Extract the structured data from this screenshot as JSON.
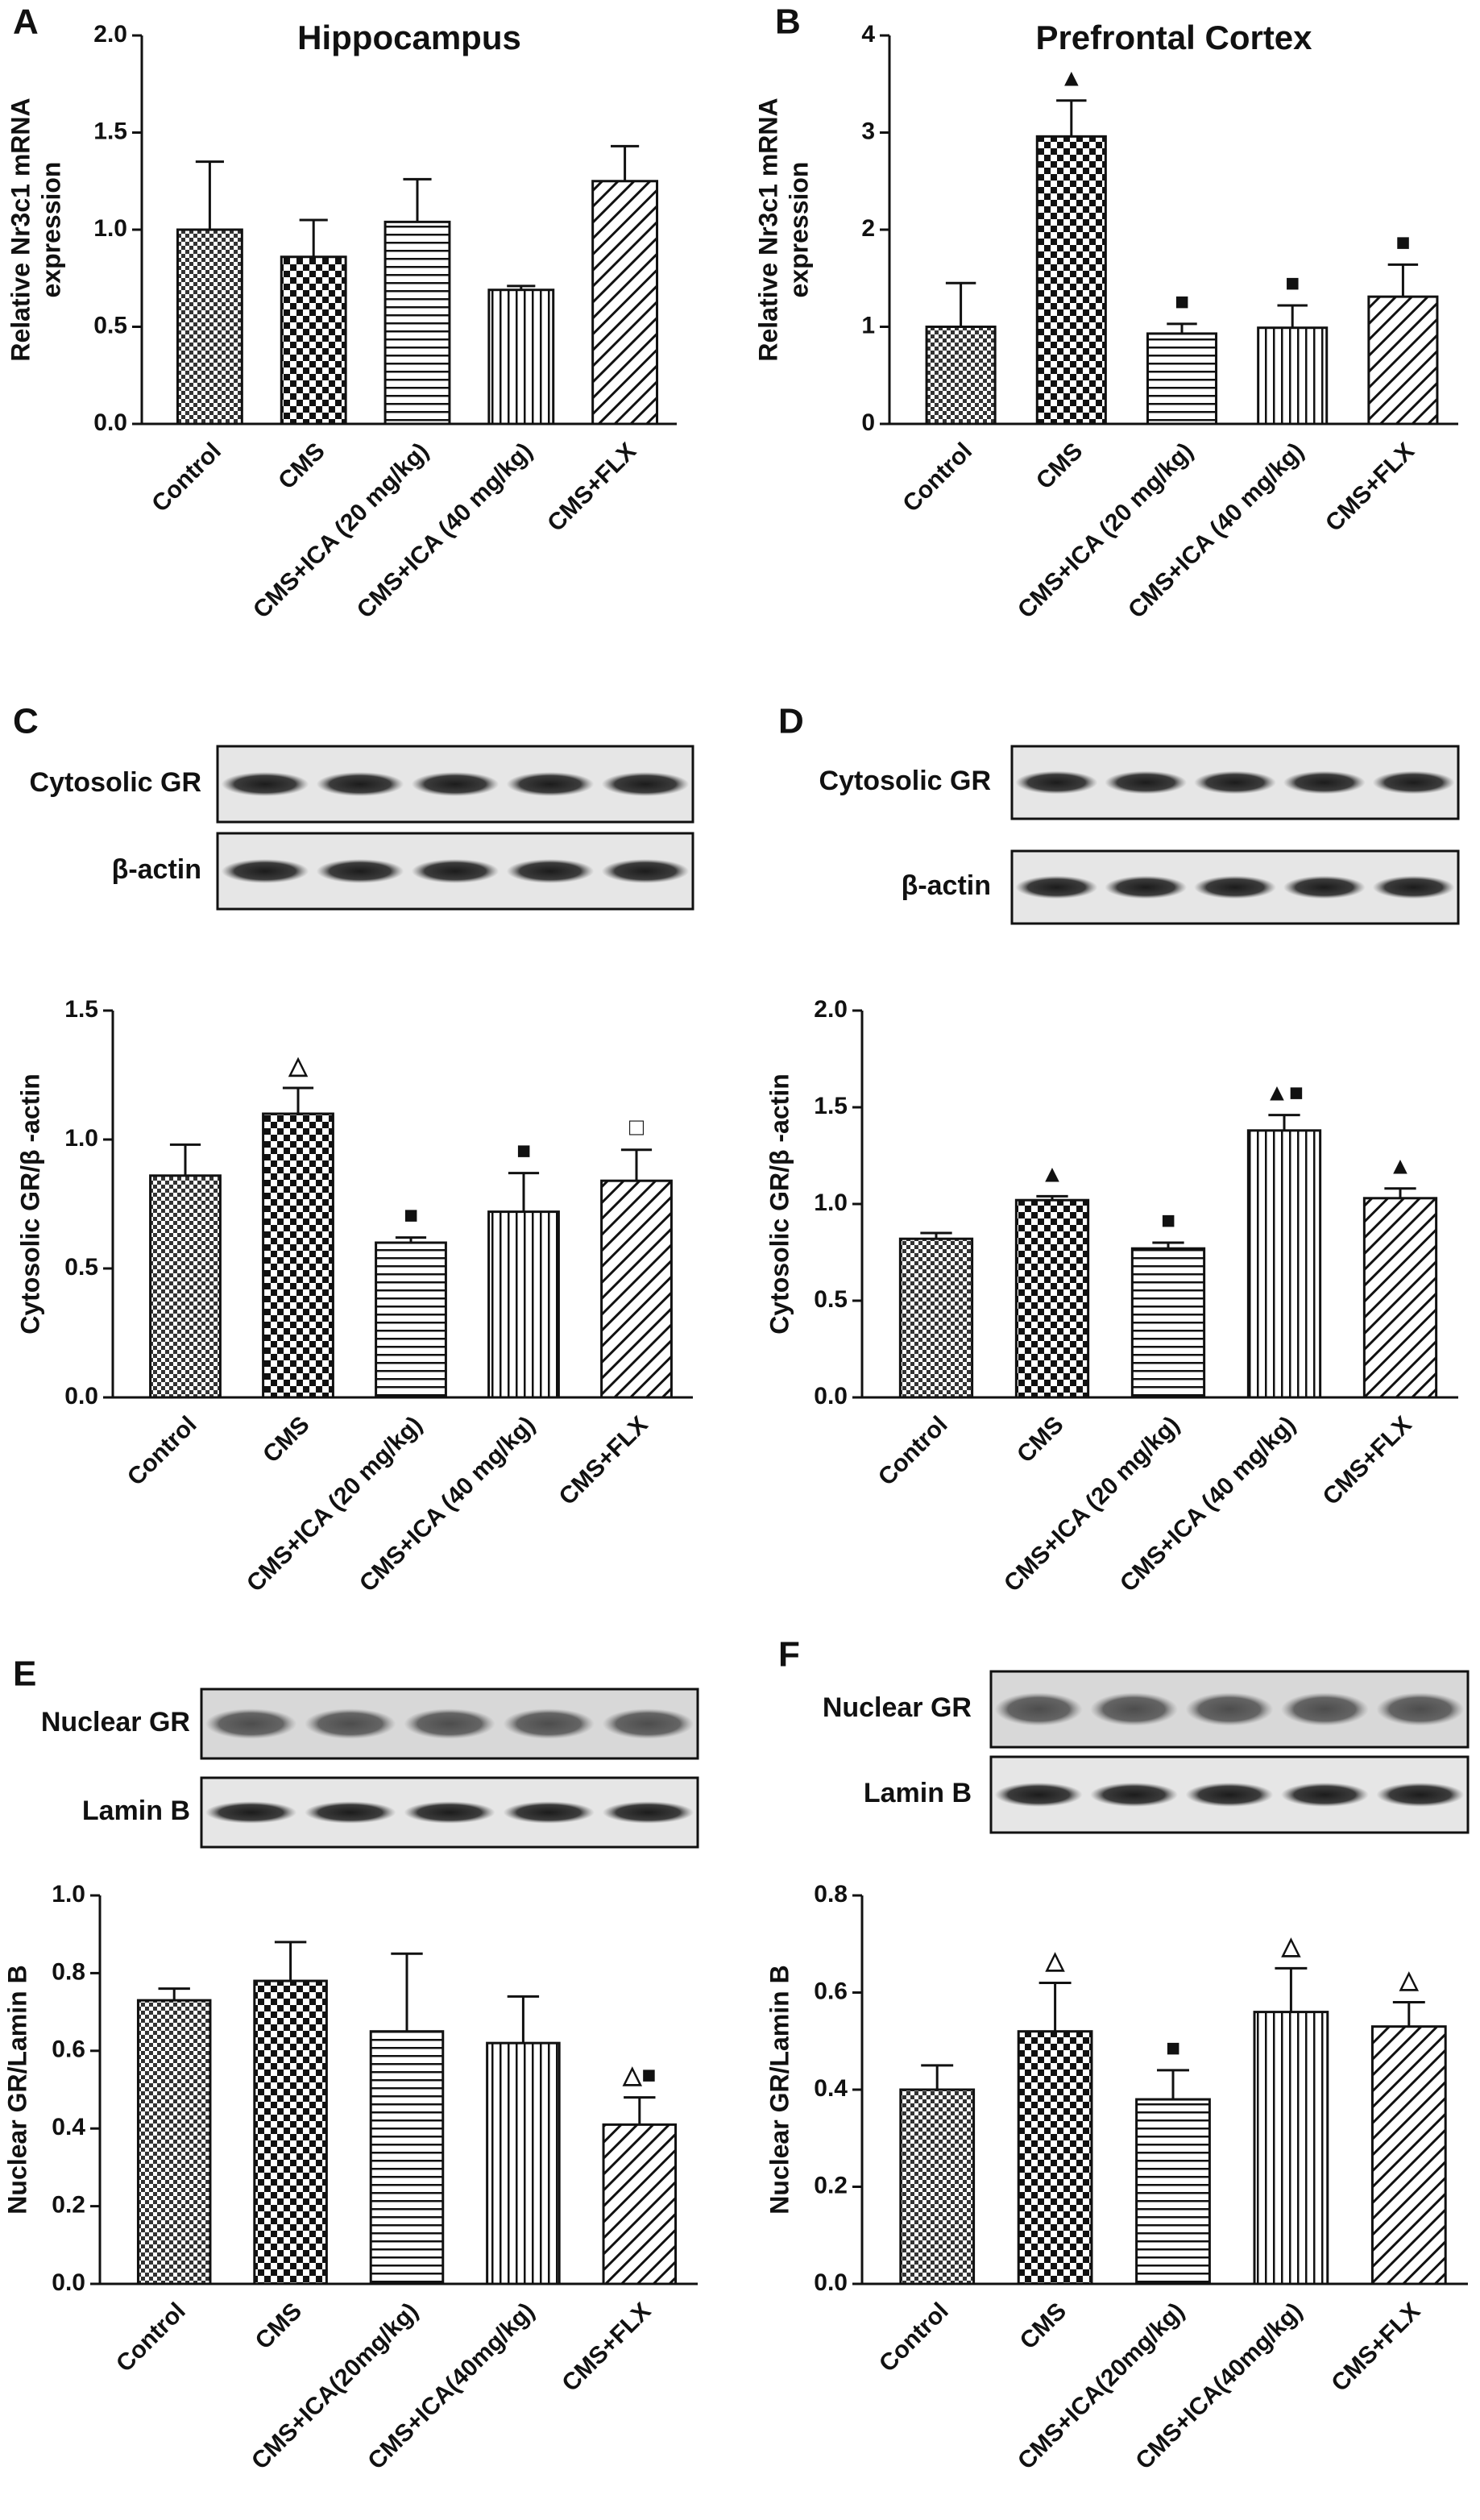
{
  "chart_data": [
    {
      "type": "bar",
      "panel": "A",
      "title": "Hippocampus",
      "ylabel": [
        "Relative Nr3c1 mRNA",
        "expression"
      ],
      "categories": [
        "Control",
        "CMS",
        "CMS+ICA (20 mg/kg)",
        "CMS+ICA (40 mg/kg)",
        "CMS+FLX"
      ],
      "values": [
        1.0,
        0.86,
        1.04,
        0.69,
        1.25
      ],
      "errors": [
        0.35,
        0.19,
        0.22,
        0.02,
        0.18
      ],
      "annotations": [
        null,
        null,
        null,
        null,
        null
      ],
      "ylim": [
        0,
        2
      ],
      "yticks": [
        {
          "value": 0,
          "label": "0.0"
        },
        0.5,
        {
          "value": 1,
          "label": "1.0"
        },
        1.5,
        {
          "value": 2,
          "label": "2.0"
        }
      ]
    },
    {
      "type": "bar",
      "panel": "B",
      "title": "Prefrontal Cortex",
      "ylabel": [
        "Relative Nr3c1 mRNA",
        "expression"
      ],
      "categories": [
        "Control",
        "CMS",
        "CMS+ICA (20 mg/kg)",
        "CMS+ICA (40 mg/kg)",
        "CMS+FLX"
      ],
      "values": [
        1.0,
        2.96,
        0.93,
        0.99,
        1.31
      ],
      "errors": [
        0.45,
        0.37,
        0.1,
        0.23,
        0.33
      ],
      "annotations": [
        null,
        "▲",
        "■",
        "■",
        "■"
      ],
      "ylim": [
        0,
        4
      ],
      "yticks": [
        0,
        1,
        2,
        3,
        4
      ]
    },
    {
      "type": "bar",
      "panel": "C",
      "blots": [
        "Cytosolic GR",
        "β-actin"
      ],
      "ylabel": [
        "Cytosolic GR/β -actin"
      ],
      "categories": [
        "Control",
        "CMS",
        "CMS+ICA (20 mg/kg)",
        "CMS+ICA (40 mg/kg)",
        "CMS+FLX"
      ],
      "values": [
        0.86,
        1.1,
        0.6,
        0.72,
        0.84
      ],
      "errors": [
        0.12,
        0.1,
        0.02,
        0.15,
        0.12
      ],
      "annotations": [
        null,
        "△",
        "■",
        "■",
        "□"
      ],
      "ylim": [
        0,
        1.5
      ],
      "yticks": [
        {
          "value": 0,
          "label": "0.0"
        },
        0.5,
        {
          "value": 1,
          "label": "1.0"
        },
        1.5
      ]
    },
    {
      "type": "bar",
      "panel": "D",
      "blots": [
        "Cytosolic GR",
        "β-actin"
      ],
      "ylabel": [
        "Cytosolic GR/β -actin"
      ],
      "categories": [
        "Control",
        "CMS",
        "CMS+ICA (20 mg/kg)",
        "CMS+ICA (40 mg/kg)",
        "CMS+FLX"
      ],
      "values": [
        0.82,
        1.02,
        0.77,
        1.38,
        1.03
      ],
      "errors": [
        0.03,
        0.02,
        0.03,
        0.08,
        0.05
      ],
      "annotations": [
        null,
        "▲",
        "■",
        "▲■",
        "▲"
      ],
      "ylim": [
        0,
        2
      ],
      "yticks": [
        {
          "value": 0,
          "label": "0.0"
        },
        0.5,
        {
          "value": 1,
          "label": "1.0"
        },
        1.5,
        {
          "value": 2,
          "label": "2.0"
        }
      ]
    },
    {
      "type": "bar",
      "panel": "E",
      "blots": [
        "Nuclear GR",
        "Lamin B"
      ],
      "ylabel": [
        "Nuclear GR/Lamin B"
      ],
      "categories": [
        "Control",
        "CMS",
        "CMS+ICA(20mg/kg)",
        "CMS+ICA(40mg/kg)",
        "CMS+FLX"
      ],
      "values": [
        0.73,
        0.78,
        0.65,
        0.62,
        0.41
      ],
      "errors": [
        0.03,
        0.1,
        0.2,
        0.12,
        0.07
      ],
      "annotations": [
        null,
        null,
        null,
        null,
        "△■"
      ],
      "ylim": [
        0,
        1
      ],
      "yticks": [
        {
          "value": 0,
          "label": "0.0"
        },
        0.2,
        0.4,
        0.6,
        0.8,
        {
          "value": 1,
          "label": "1.0"
        }
      ]
    },
    {
      "type": "bar",
      "panel": "F",
      "blots": [
        "Nuclear GR",
        "Lamin B"
      ],
      "ylabel": [
        "Nuclear GR/Lamin B"
      ],
      "categories": [
        "Control",
        "CMS",
        "CMS+ICA(20mg/kg)",
        "CMS+ICA(40mg/kg)",
        "CMS+FLX"
      ],
      "values": [
        0.4,
        0.52,
        0.38,
        0.56,
        0.53
      ],
      "errors": [
        0.05,
        0.1,
        0.06,
        0.09,
        0.05
      ],
      "annotations": [
        null,
        "△",
        "■",
        "△",
        "△"
      ],
      "ylim": [
        0,
        0.8
      ],
      "yticks": [
        {
          "value": 0,
          "label": "0.0"
        },
        0.2,
        0.4,
        0.6,
        0.8
      ]
    }
  ]
}
